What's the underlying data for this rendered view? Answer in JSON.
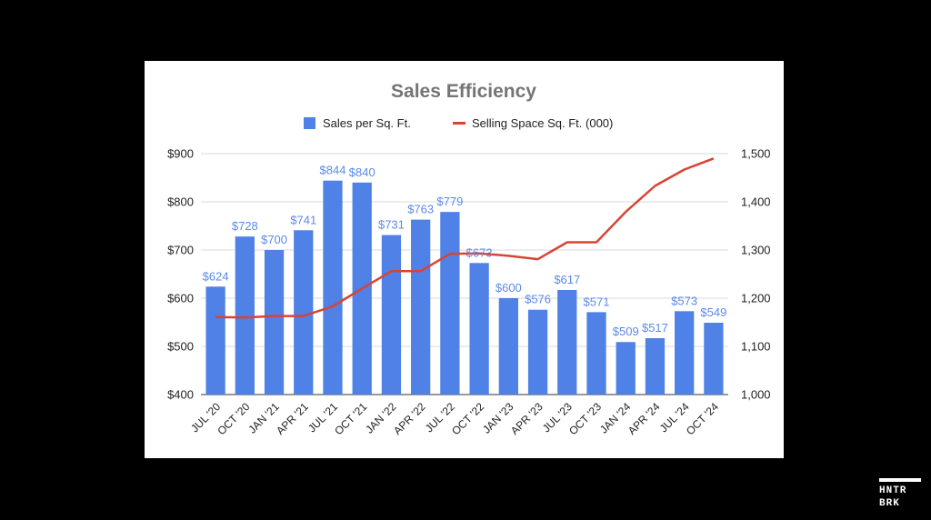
{
  "chart_data": {
    "type": "bar",
    "title": "Sales Efficiency",
    "categories": [
      "JUL '20",
      "OCT '20",
      "JAN '21",
      "APR '21",
      "JUL '21",
      "OCT '21",
      "JAN '22",
      "APR '22",
      "JUL '22",
      "OCT '22",
      "JAN '23",
      "APR '23",
      "JUL '23",
      "OCT '23",
      "JAN '24",
      "APR '24",
      "JUL '24",
      "OCT '24"
    ],
    "series": [
      {
        "name": "Sales per Sq. Ft.",
        "type": "bar",
        "axis": "left",
        "color": "#4f81e6",
        "values": [
          624,
          728,
          700,
          741,
          844,
          840,
          731,
          763,
          779,
          673,
          600,
          576,
          617,
          571,
          509,
          517,
          573,
          549
        ],
        "labels": [
          "$624",
          "$728",
          "$700",
          "$741",
          "$844",
          "$840",
          "$731",
          "$763",
          "$779",
          "$673",
          "$600",
          "$576",
          "$617",
          "$571",
          "$509",
          "$517",
          "$573",
          "$549"
        ]
      },
      {
        "name": "Selling Space Sq. Ft. (000)",
        "type": "line",
        "axis": "right",
        "color": "#d84434",
        "values": [
          1161,
          1160,
          1163,
          1163,
          1183,
          1220,
          1256,
          1256,
          1292,
          1293,
          1288,
          1281,
          1316,
          1316,
          1379,
          1433,
          1467,
          1490
        ]
      }
    ],
    "y_left": {
      "ylim": [
        400,
        900
      ],
      "ticks": [
        "$400",
        "$500",
        "$600",
        "$700",
        "$800",
        "$900"
      ]
    },
    "y_right": {
      "ylim": [
        1000,
        1500
      ],
      "ticks": [
        "1,000",
        "1,100",
        "1,200",
        "1,300",
        "1,400",
        "1,500"
      ]
    },
    "grid": true,
    "legend": "top-center",
    "label_color": "#5b8ae8"
  },
  "watermark": {
    "line1": "HNTR",
    "line2": "BRK"
  }
}
